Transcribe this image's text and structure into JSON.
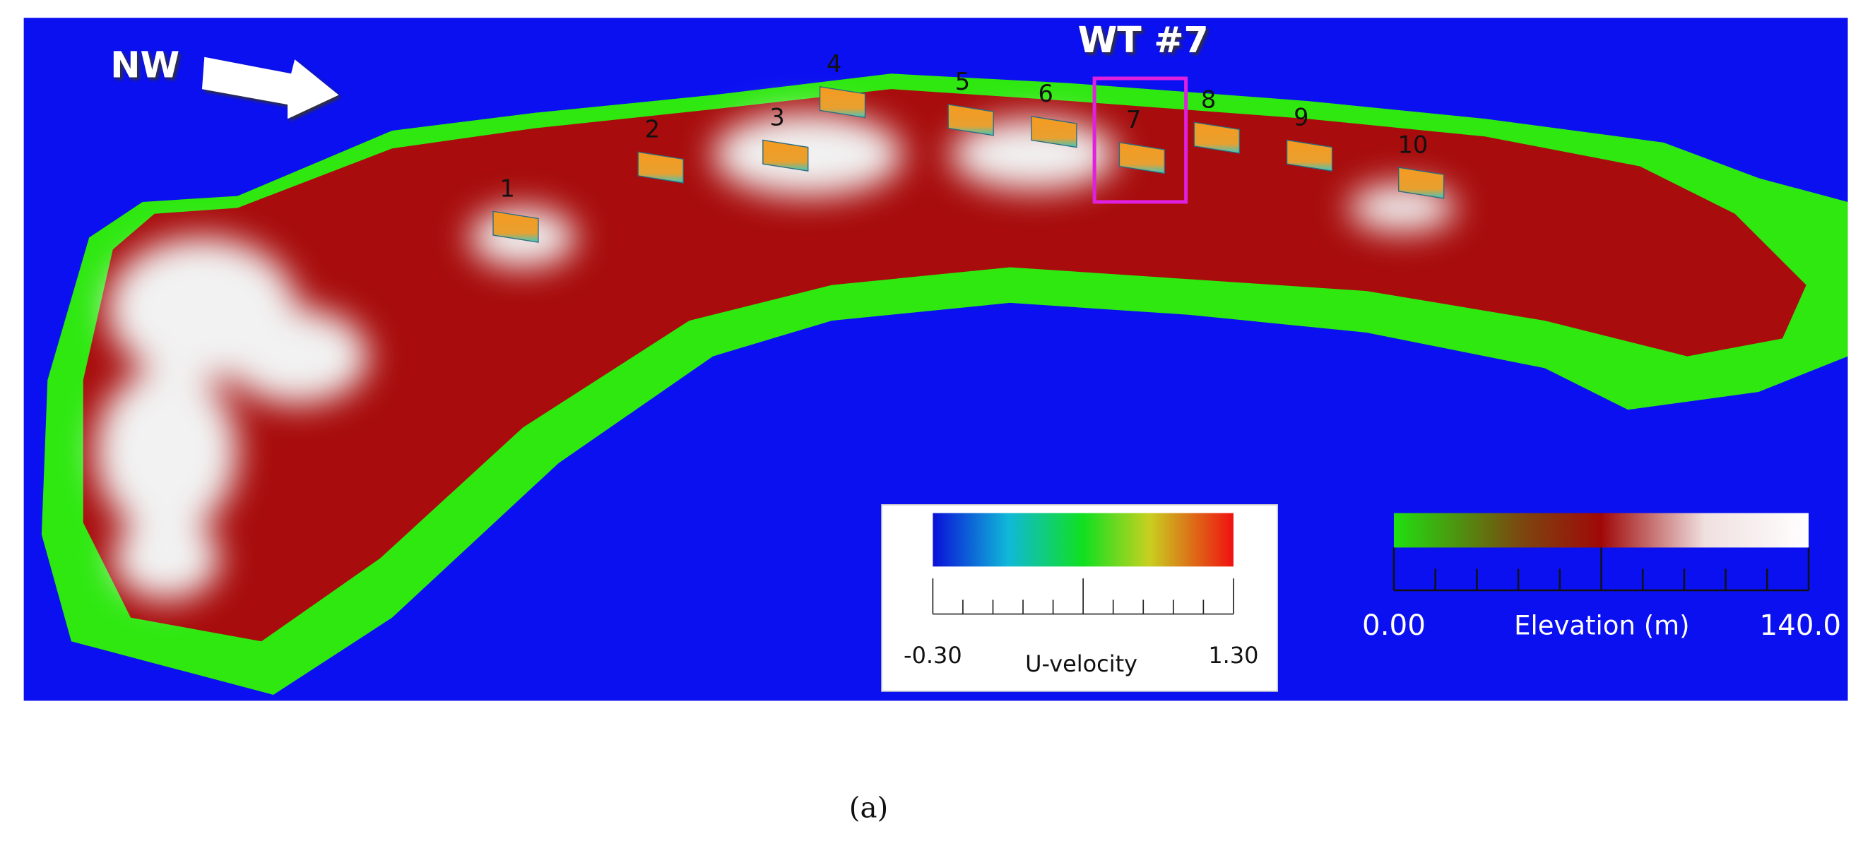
{
  "figure": {
    "direction_label": "NW",
    "highlight_label": "WT #7",
    "turbine_labels": [
      "1",
      "2",
      "3",
      "4",
      "5",
      "6",
      "7",
      "8",
      "9",
      "10"
    ],
    "velocity_legend": {
      "title": "U-velocity",
      "min_label": "-0.30",
      "max_label": "1.30"
    },
    "elevation_legend": {
      "title": "Elevation (m)",
      "min_label": "0.00",
      "max_label": "140.0"
    },
    "caption": "(a)"
  }
}
